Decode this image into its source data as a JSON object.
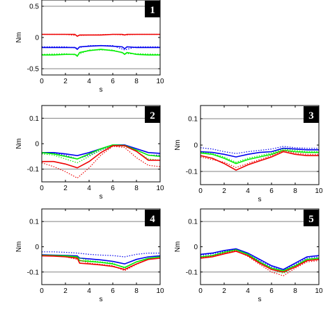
{
  "chart_data": [
    {
      "type": "line",
      "panel_label": "1",
      "xlabel": "s",
      "ylabel": "Nm",
      "xlim": [
        0,
        10
      ],
      "ylim": [
        -0.6,
        0.6
      ],
      "xticks": [
        "0",
        "2",
        "4",
        "6",
        "8",
        "10"
      ],
      "yticks": [
        {
          "v": 0.5,
          "t": "0.5"
        },
        {
          "v": 0,
          "t": "0"
        },
        {
          "v": -0.5,
          "t": "-0.5"
        }
      ],
      "reference_lines": [
        0.5,
        -0.5
      ],
      "series": [
        {
          "color": "red",
          "style": "solid",
          "x": [
            0,
            1,
            2,
            2.8,
            3,
            3.2,
            4,
            5,
            6,
            6.8,
            7,
            7.2,
            8,
            9,
            10
          ],
          "y": [
            0.05,
            0.05,
            0.05,
            0.05,
            0.02,
            0.04,
            0.04,
            0.04,
            0.05,
            0.05,
            0.04,
            0.05,
            0.05,
            0.05,
            0.05
          ]
        },
        {
          "color": "red",
          "style": "dotted",
          "x": [
            0,
            2,
            3,
            4,
            6,
            7,
            8,
            10
          ],
          "y": [
            0.05,
            0.05,
            0.03,
            0.04,
            0.05,
            0.04,
            0.05,
            0.05
          ]
        },
        {
          "color": "blue",
          "style": "solid",
          "x": [
            0,
            1,
            2,
            2.8,
            3,
            3.2,
            4,
            5,
            6,
            6.8,
            7,
            7.2,
            8,
            9,
            10
          ],
          "y": [
            -0.16,
            -0.16,
            -0.16,
            -0.16,
            -0.19,
            -0.15,
            -0.14,
            -0.13,
            -0.14,
            -0.15,
            -0.18,
            -0.15,
            -0.16,
            -0.16,
            -0.16
          ]
        },
        {
          "color": "blue",
          "style": "dotted",
          "x": [
            0,
            2,
            3,
            4,
            6,
            7,
            8,
            10
          ],
          "y": [
            -0.15,
            -0.15,
            -0.17,
            -0.13,
            -0.13,
            -0.2,
            -0.15,
            -0.15
          ]
        },
        {
          "color": "green",
          "style": "solid",
          "x": [
            0,
            1,
            2,
            2.8,
            3,
            3.2,
            4,
            5,
            6,
            6.8,
            7,
            7.2,
            8,
            9,
            10
          ],
          "y": [
            -0.28,
            -0.28,
            -0.27,
            -0.27,
            -0.3,
            -0.24,
            -0.21,
            -0.19,
            -0.21,
            -0.24,
            -0.27,
            -0.24,
            -0.27,
            -0.28,
            -0.28
          ]
        },
        {
          "color": "green",
          "style": "dotted",
          "x": [
            0,
            2,
            3,
            4,
            6,
            7,
            8,
            10
          ],
          "y": [
            -0.27,
            -0.26,
            -0.28,
            -0.2,
            -0.2,
            -0.26,
            -0.26,
            -0.27
          ]
        }
      ]
    },
    {
      "type": "line",
      "panel_label": "2",
      "xlabel": "s",
      "ylabel": "Nm",
      "xlim": [
        0,
        10
      ],
      "ylim": [
        -0.15,
        0.15
      ],
      "xticks": [
        "0",
        "2",
        "4",
        "6",
        "8",
        "10"
      ],
      "yticks": [
        {
          "v": 0.1,
          "t": "0.1"
        },
        {
          "v": 0,
          "t": "0"
        },
        {
          "v": -0.1,
          "t": "-0.1"
        }
      ],
      "reference_lines": [
        0.1,
        -0.1
      ],
      "series": [
        {
          "color": "blue",
          "style": "solid",
          "x": [
            0,
            1,
            2,
            3,
            4,
            5,
            6,
            7,
            8,
            9,
            10
          ],
          "y": [
            -0.035,
            -0.035,
            -0.04,
            -0.047,
            -0.035,
            -0.02,
            -0.005,
            -0.005,
            -0.02,
            -0.035,
            -0.038
          ]
        },
        {
          "color": "blue",
          "style": "dotted",
          "x": [
            0,
            1,
            2,
            3,
            4,
            5,
            6,
            7,
            8,
            9,
            10
          ],
          "y": [
            -0.037,
            -0.038,
            -0.045,
            -0.06,
            -0.045,
            -0.025,
            -0.007,
            -0.007,
            -0.025,
            -0.045,
            -0.045
          ]
        },
        {
          "color": "green",
          "style": "solid",
          "x": [
            0,
            1,
            2,
            3,
            4,
            5,
            6,
            7,
            8,
            9,
            10
          ],
          "y": [
            -0.035,
            -0.04,
            -0.05,
            -0.06,
            -0.04,
            -0.02,
            -0.005,
            -0.007,
            -0.025,
            -0.045,
            -0.05
          ]
        },
        {
          "color": "green",
          "style": "dotted",
          "x": [
            0,
            1,
            2,
            3,
            4,
            5,
            6,
            7,
            8,
            9,
            10
          ],
          "y": [
            -0.04,
            -0.045,
            -0.06,
            -0.075,
            -0.05,
            -0.025,
            -0.007,
            -0.01,
            -0.03,
            -0.06,
            -0.065
          ]
        },
        {
          "color": "red",
          "style": "solid",
          "x": [
            0,
            1,
            2,
            3,
            4,
            5,
            6,
            7,
            8,
            9,
            10
          ],
          "y": [
            -0.07,
            -0.07,
            -0.08,
            -0.095,
            -0.07,
            -0.035,
            -0.008,
            -0.008,
            -0.03,
            -0.065,
            -0.065
          ]
        },
        {
          "color": "red",
          "style": "dotted",
          "x": [
            0,
            1,
            2,
            3,
            4,
            5,
            6,
            7,
            8,
            9,
            10
          ],
          "y": [
            -0.075,
            -0.09,
            -0.11,
            -0.135,
            -0.095,
            -0.045,
            -0.01,
            -0.015,
            -0.055,
            -0.085,
            -0.09
          ]
        }
      ]
    },
    {
      "type": "line",
      "panel_label": "3",
      "xlabel": "s",
      "ylabel": "Nm",
      "xlim": [
        0,
        10
      ],
      "ylim": [
        -0.15,
        0.15
      ],
      "xticks": [
        "0",
        "2",
        "4",
        "6",
        "8",
        "10"
      ],
      "yticks": [
        {
          "v": 0.1,
          "t": "0.1"
        },
        {
          "v": 0,
          "t": "0"
        },
        {
          "v": -0.1,
          "t": "-0.1"
        }
      ],
      "reference_lines": [
        0.1,
        -0.1
      ],
      "series": [
        {
          "color": "blue",
          "style": "solid",
          "x": [
            0,
            1,
            2,
            3,
            4,
            5,
            6,
            7,
            8,
            9,
            10
          ],
          "y": [
            -0.025,
            -0.028,
            -0.035,
            -0.045,
            -0.035,
            -0.028,
            -0.025,
            -0.012,
            -0.015,
            -0.018,
            -0.018
          ]
        },
        {
          "color": "blue",
          "style": "dotted",
          "x": [
            0,
            1,
            2,
            3,
            4,
            5,
            6,
            7,
            8,
            9,
            10
          ],
          "y": [
            -0.01,
            -0.015,
            -0.025,
            -0.032,
            -0.025,
            -0.02,
            -0.015,
            -0.005,
            -0.01,
            -0.012,
            -0.012
          ]
        },
        {
          "color": "green",
          "style": "solid",
          "x": [
            0,
            1,
            2,
            3,
            4,
            5,
            6,
            7,
            8,
            9,
            10
          ],
          "y": [
            -0.03,
            -0.035,
            -0.05,
            -0.07,
            -0.055,
            -0.045,
            -0.035,
            -0.02,
            -0.025,
            -0.028,
            -0.028
          ]
        },
        {
          "color": "green",
          "style": "dotted",
          "x": [
            0,
            1,
            2,
            3,
            4,
            5,
            6,
            7,
            8,
            9,
            10
          ],
          "y": [
            -0.028,
            -0.033,
            -0.045,
            -0.065,
            -0.05,
            -0.04,
            -0.03,
            -0.015,
            -0.02,
            -0.025,
            -0.025
          ]
        },
        {
          "color": "red",
          "style": "solid",
          "x": [
            0,
            1,
            2,
            3,
            4,
            5,
            6,
            7,
            8,
            9,
            10
          ],
          "y": [
            -0.04,
            -0.05,
            -0.07,
            -0.095,
            -0.075,
            -0.06,
            -0.045,
            -0.025,
            -0.035,
            -0.04,
            -0.04
          ]
        },
        {
          "color": "red",
          "style": "dotted",
          "x": [
            0,
            1,
            2,
            3,
            4,
            5,
            6,
            7,
            8,
            9,
            10
          ],
          "y": [
            -0.045,
            -0.055,
            -0.065,
            -0.085,
            -0.07,
            -0.055,
            -0.04,
            -0.02,
            -0.03,
            -0.035,
            -0.035
          ]
        }
      ]
    },
    {
      "type": "line",
      "panel_label": "4",
      "xlabel": "s",
      "ylabel": "Nm",
      "xlim": [
        0,
        10
      ],
      "ylim": [
        -0.15,
        0.15
      ],
      "xticks": [
        "0",
        "2",
        "4",
        "6",
        "8",
        "10"
      ],
      "yticks": [
        {
          "v": 0.1,
          "t": "0.1"
        },
        {
          "v": 0,
          "t": "0"
        },
        {
          "v": -0.1,
          "t": "-0.1"
        }
      ],
      "reference_lines": [
        0.1,
        -0.1
      ],
      "series": [
        {
          "color": "blue",
          "style": "dotted",
          "x": [
            0,
            1,
            2,
            3,
            4,
            5,
            6,
            7,
            8,
            9,
            10
          ],
          "y": [
            -0.02,
            -0.02,
            -0.022,
            -0.025,
            -0.03,
            -0.033,
            -0.035,
            -0.04,
            -0.03,
            -0.025,
            -0.025
          ]
        },
        {
          "color": "blue",
          "style": "solid",
          "x": [
            0,
            1,
            2,
            3,
            3.2,
            4,
            5,
            6,
            7,
            8,
            9,
            10
          ],
          "y": [
            -0.032,
            -0.033,
            -0.034,
            -0.036,
            -0.045,
            -0.048,
            -0.052,
            -0.058,
            -0.068,
            -0.05,
            -0.04,
            -0.036
          ]
        },
        {
          "color": "green",
          "style": "solid",
          "x": [
            0,
            1,
            2,
            3,
            3.2,
            4,
            5,
            6,
            7,
            8,
            9,
            10
          ],
          "y": [
            -0.034,
            -0.035,
            -0.036,
            -0.04,
            -0.055,
            -0.058,
            -0.062,
            -0.068,
            -0.082,
            -0.06,
            -0.046,
            -0.04
          ]
        },
        {
          "color": "green",
          "style": "dotted",
          "x": [
            0,
            1,
            2,
            3,
            4,
            5,
            6,
            7,
            8,
            9,
            10
          ],
          "y": [
            -0.033,
            -0.034,
            -0.036,
            -0.042,
            -0.055,
            -0.06,
            -0.065,
            -0.085,
            -0.06,
            -0.045,
            -0.04
          ]
        },
        {
          "color": "red",
          "style": "solid",
          "x": [
            0,
            1,
            2,
            3,
            3.2,
            4,
            5,
            6,
            7,
            8,
            9,
            10
          ],
          "y": [
            -0.036,
            -0.037,
            -0.04,
            -0.045,
            -0.065,
            -0.068,
            -0.072,
            -0.078,
            -0.09,
            -0.068,
            -0.05,
            -0.045
          ]
        },
        {
          "color": "red",
          "style": "dotted",
          "x": [
            0,
            1,
            2,
            3,
            4,
            5,
            6,
            7,
            8,
            9,
            10
          ],
          "y": [
            -0.035,
            -0.036,
            -0.04,
            -0.05,
            -0.065,
            -0.07,
            -0.075,
            -0.095,
            -0.07,
            -0.05,
            -0.045
          ]
        }
      ]
    },
    {
      "type": "line",
      "panel_label": "5",
      "xlabel": "s",
      "ylabel": "Nm",
      "xlim": [
        0,
        10
      ],
      "ylim": [
        -0.15,
        0.15
      ],
      "xticks": [
        "0",
        "2",
        "4",
        "6",
        "8",
        "10"
      ],
      "yticks": [
        {
          "v": 0.1,
          "t": "0.1"
        },
        {
          "v": 0,
          "t": "0"
        },
        {
          "v": -0.1,
          "t": "-0.1"
        }
      ],
      "reference_lines": [
        0.1,
        -0.1
      ],
      "series": [
        {
          "color": "blue",
          "style": "solid",
          "x": [
            0,
            1,
            2,
            3,
            4,
            5,
            6,
            7,
            8,
            9,
            10
          ],
          "y": [
            -0.03,
            -0.025,
            -0.015,
            -0.008,
            -0.025,
            -0.05,
            -0.075,
            -0.09,
            -0.065,
            -0.04,
            -0.035
          ]
        },
        {
          "color": "blue",
          "style": "dotted",
          "x": [
            0,
            1,
            2,
            3,
            4,
            5,
            6,
            7,
            8,
            9,
            10
          ],
          "y": [
            -0.033,
            -0.028,
            -0.018,
            -0.01,
            -0.03,
            -0.055,
            -0.08,
            -0.095,
            -0.07,
            -0.045,
            -0.04
          ]
        },
        {
          "color": "green",
          "style": "solid",
          "x": [
            0,
            1,
            2,
            3,
            4,
            5,
            6,
            7,
            8,
            9,
            10
          ],
          "y": [
            -0.04,
            -0.035,
            -0.022,
            -0.012,
            -0.03,
            -0.06,
            -0.085,
            -0.095,
            -0.075,
            -0.05,
            -0.045
          ]
        },
        {
          "color": "green",
          "style": "dotted",
          "x": [
            0,
            1,
            2,
            3,
            4,
            5,
            6,
            7,
            8,
            9,
            10
          ],
          "y": [
            -0.038,
            -0.034,
            -0.02,
            -0.012,
            -0.03,
            -0.065,
            -0.09,
            -0.105,
            -0.08,
            -0.055,
            -0.05
          ]
        },
        {
          "color": "red",
          "style": "solid",
          "x": [
            0,
            1,
            2,
            3,
            4,
            5,
            6,
            7,
            8,
            9,
            10
          ],
          "y": [
            -0.045,
            -0.04,
            -0.028,
            -0.018,
            -0.035,
            -0.065,
            -0.09,
            -0.1,
            -0.08,
            -0.055,
            -0.05
          ]
        },
        {
          "color": "red",
          "style": "dotted",
          "x": [
            0,
            1,
            2,
            3,
            4,
            5,
            6,
            7,
            8,
            9,
            10
          ],
          "y": [
            -0.042,
            -0.037,
            -0.025,
            -0.015,
            -0.038,
            -0.07,
            -0.1,
            -0.115,
            -0.085,
            -0.06,
            -0.055
          ]
        }
      ]
    }
  ],
  "colors": {
    "blue": "#0000ee",
    "red": "#ee0000",
    "green": "#00ee00",
    "reference_line": "#808080",
    "badge": "#000000"
  }
}
